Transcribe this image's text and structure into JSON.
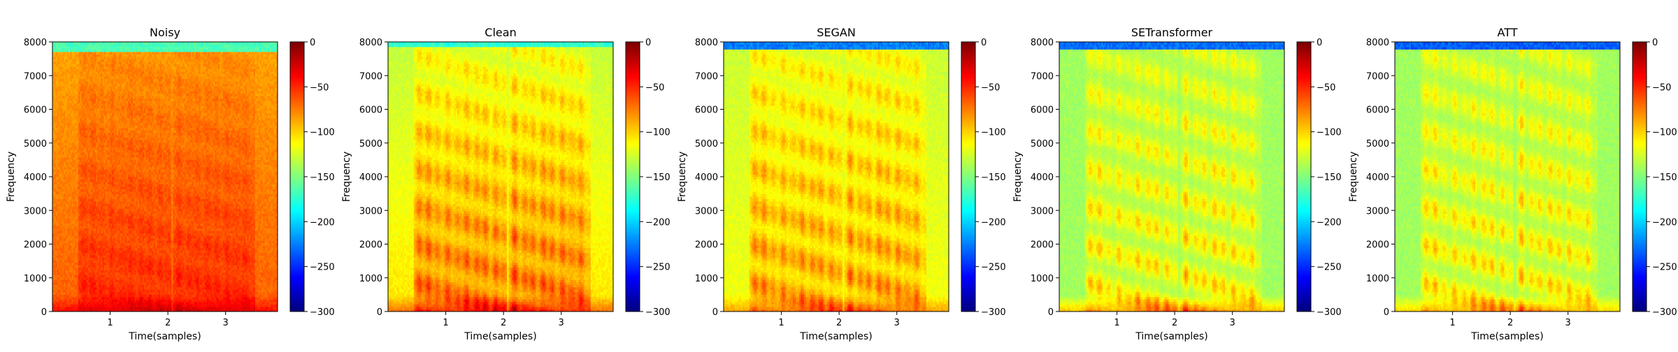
{
  "chart_data": [
    {
      "type": "heatmap",
      "title": "Noisy",
      "xlabel": "Time(samples)",
      "ylabel": "Frequency",
      "xlim": [
        0,
        3.9
      ],
      "ylim": [
        0,
        8000
      ],
      "x_ticks": [
        1,
        2,
        3
      ],
      "y_ticks": [
        0,
        1000,
        2000,
        3000,
        4000,
        5000,
        6000,
        7000,
        8000
      ],
      "colorbar": {
        "cmap": "jet",
        "range": [
          -300,
          0
        ],
        "ticks": [
          0,
          -50,
          -100,
          -150,
          -200,
          -250,
          -300
        ]
      },
      "profile": {
        "base_low": -55,
        "base_high": -85,
        "background": -88,
        "top_band": -165,
        "top_band_from": 7700,
        "speech_gain": 18,
        "floor_boost": 25
      }
    },
    {
      "type": "heatmap",
      "title": "Clean",
      "xlabel": "Time(samples)",
      "ylabel": "Frequency",
      "xlim": [
        0,
        3.9
      ],
      "ylim": [
        0,
        8000
      ],
      "x_ticks": [
        1,
        2,
        3
      ],
      "y_ticks": [
        0,
        1000,
        2000,
        3000,
        4000,
        5000,
        6000,
        7000,
        8000
      ],
      "colorbar": {
        "cmap": "jet",
        "range": [
          -300,
          0
        ],
        "ticks": [
          0,
          -50,
          -100,
          -150,
          -200,
          -250,
          -300
        ]
      },
      "profile": {
        "base_low": -95,
        "base_high": -130,
        "background": -130,
        "top_band": -175,
        "top_band_from": 7850,
        "speech_gain": 55,
        "floor_boost": 35
      }
    },
    {
      "type": "heatmap",
      "title": "SEGAN",
      "xlabel": "Time(samples)",
      "ylabel": "Frequency",
      "xlim": [
        0,
        3.9
      ],
      "ylim": [
        0,
        8000
      ],
      "x_ticks": [
        1,
        2,
        3
      ],
      "y_ticks": [
        0,
        1000,
        2000,
        3000,
        4000,
        5000,
        6000,
        7000,
        8000
      ],
      "colorbar": {
        "cmap": "jet",
        "range": [
          -300,
          0
        ],
        "ticks": [
          0,
          -50,
          -100,
          -150,
          -200,
          -250,
          -300
        ]
      },
      "profile": {
        "base_low": -110,
        "base_high": -128,
        "background": -128,
        "top_band": -225,
        "top_band_from": 7800,
        "speech_gain": 55,
        "floor_boost": 30
      }
    },
    {
      "type": "heatmap",
      "title": "SETransformer",
      "xlabel": "Time(samples)",
      "ylabel": "Frequency",
      "xlim": [
        0,
        3.9
      ],
      "ylim": [
        0,
        8000
      ],
      "x_ticks": [
        1,
        2,
        3
      ],
      "y_ticks": [
        0,
        1000,
        2000,
        3000,
        4000,
        5000,
        6000,
        7000,
        8000
      ],
      "colorbar": {
        "cmap": "jet",
        "range": [
          -300,
          0
        ],
        "ticks": [
          0,
          -50,
          -100,
          -150,
          -200,
          -250,
          -300
        ]
      },
      "profile": {
        "base_low": -140,
        "base_high": -140,
        "background": -140,
        "top_band": -230,
        "top_band_from": 7750,
        "speech_gain": 60,
        "floor_boost": 45
      }
    },
    {
      "type": "heatmap",
      "title": "ATT",
      "xlabel": "Time(samples)",
      "ylabel": "Frequency",
      "xlim": [
        0,
        3.9
      ],
      "ylim": [
        0,
        8000
      ],
      "x_ticks": [
        1,
        2,
        3
      ],
      "y_ticks": [
        0,
        1000,
        2000,
        3000,
        4000,
        5000,
        6000,
        7000,
        8000
      ],
      "colorbar": {
        "cmap": "jet",
        "range": [
          -300,
          0
        ],
        "ticks": [
          0,
          -50,
          -100,
          -150,
          -200,
          -250,
          -300
        ]
      },
      "profile": {
        "base_low": -140,
        "base_high": -140,
        "background": -140,
        "top_band": -235,
        "top_band_from": 7800,
        "speech_gain": 60,
        "floor_boost": 40
      }
    }
  ]
}
